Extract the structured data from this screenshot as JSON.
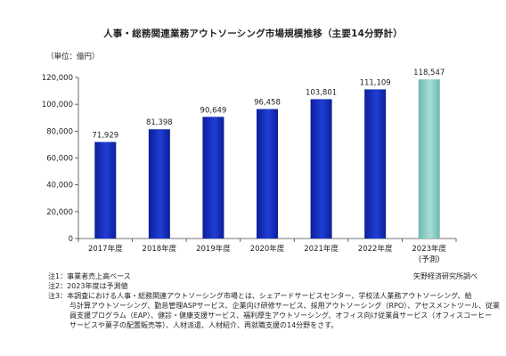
{
  "chart_data": {
    "type": "bar",
    "title": "人事・総務関連業務アウトソーシング市場規模推移（主要14分野計）",
    "unit_label": "（単位：億円）",
    "categories": [
      "2017年度",
      "2018年度",
      "2019年度",
      "2020年度",
      "2021年度",
      "2022年度",
      "2023年度"
    ],
    "category_sublabels": [
      "",
      "",
      "",
      "",
      "",
      "",
      "(予測)"
    ],
    "values": [
      71929,
      81398,
      90649,
      96458,
      103801,
      111109,
      118547
    ],
    "value_labels": [
      "71,929",
      "81,398",
      "90,649",
      "96,458",
      "103,801",
      "111,109",
      "118,547"
    ],
    "forecast_index": 6,
    "ylim": [
      0,
      120000
    ],
    "yticks": [
      "0",
      "20,000",
      "40,000",
      "60,000",
      "80,000",
      "100,000",
      "120,000"
    ],
    "grid": false,
    "colors": {
      "actual": "#1f3fd6",
      "actual_dark": "#0d1f99",
      "forecast": "#a8dcd8",
      "forecast_dark": "#6fb7b1"
    }
  },
  "notes": {
    "note1": "注1：事業者売上高ベース",
    "note2": "注2：2023年度は予測値",
    "note3_lines": [
      "注3：本調査における人事・総務関連アウトソーシング市場とは、シェアードサービスセンター、学校法人業務アウトソーシング、給",
      "与計算アウトソーシング、勤怠管理ASPサービス、企業向け研修サービス、採用アウトソーシング（RPO）、アセスメントツール、従業",
      "員支援プログラム（EAP）、健診・健康支援サービス、福利厚生アウトソーシング、オフィス向け従業員サービス（オフィスコーヒー",
      "サービスや菓子の配置販売等）、人材派遣、人材紹介、再就職支援の14分野をさす。"
    ]
  },
  "source": "矢野経済研究所調べ"
}
